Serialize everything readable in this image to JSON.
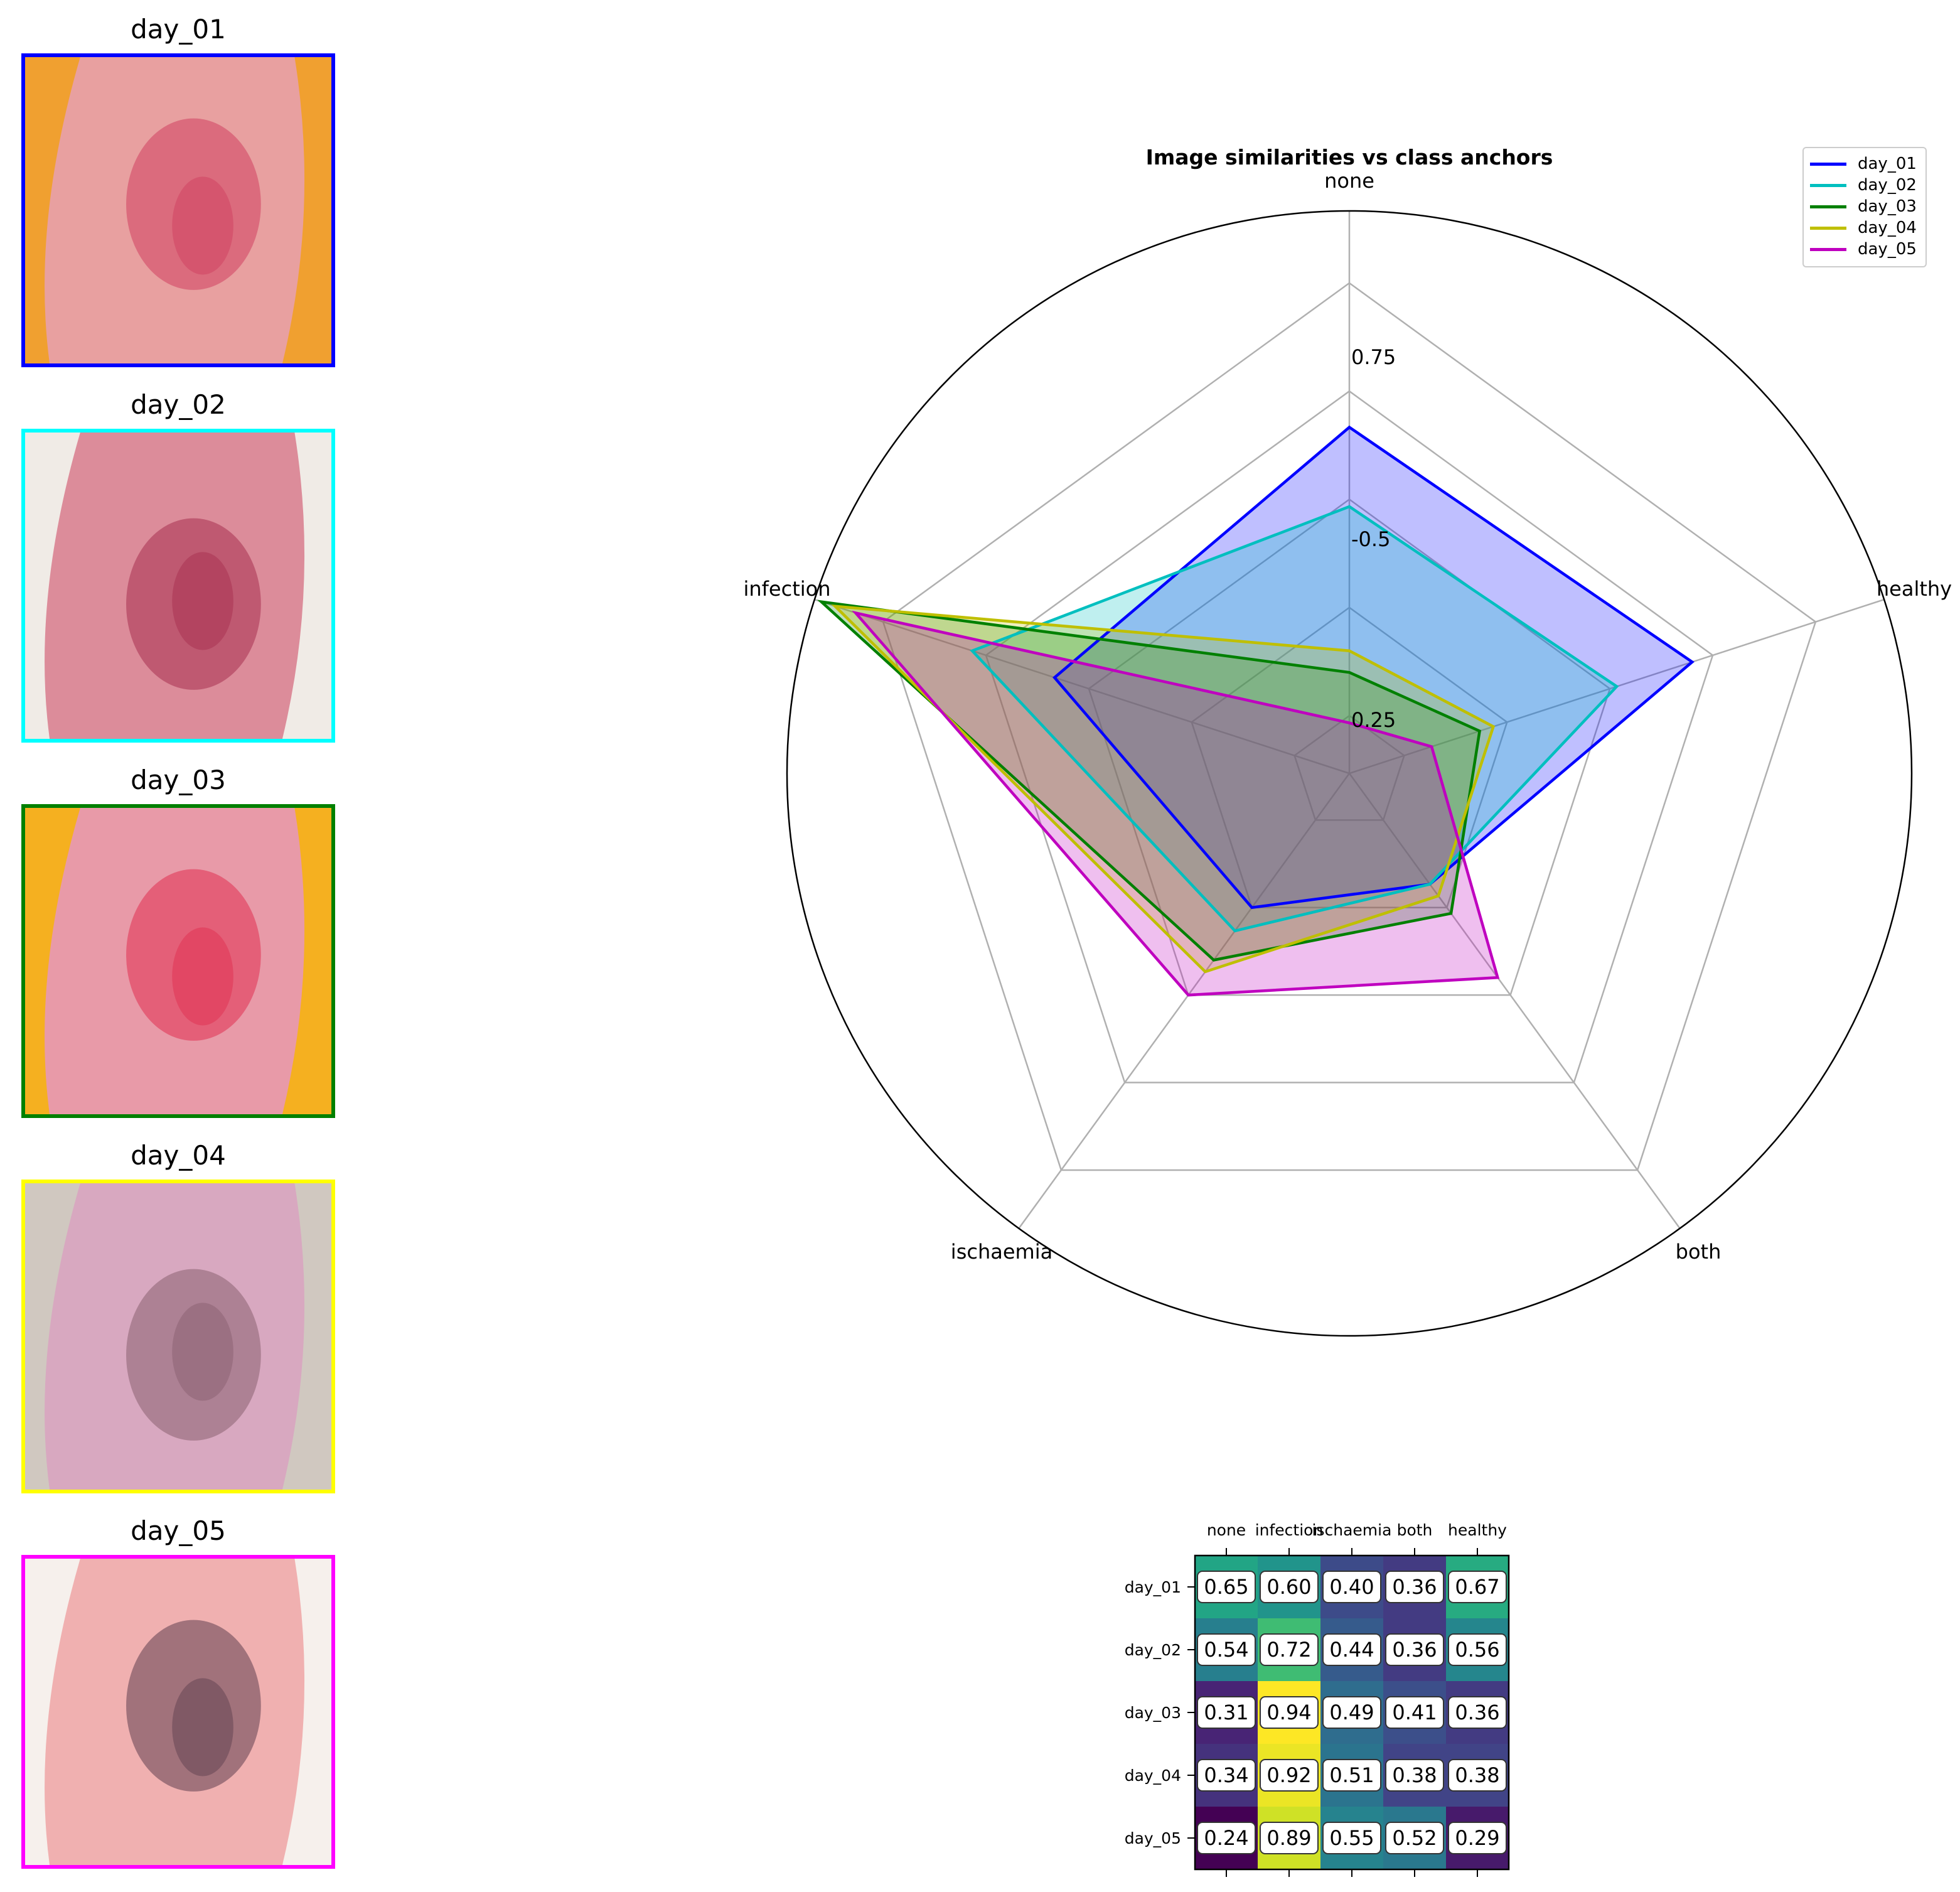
{
  "thumbnails": [
    {
      "title": "day_01",
      "color": "#0000ff",
      "base": "#e8a0a0",
      "accent": "#d04060",
      "bg": "#f0a030"
    },
    {
      "title": "day_02",
      "color": "#00ffff",
      "base": "#dc8c9a",
      "accent": "#a83050",
      "bg": "#f0ebe6"
    },
    {
      "title": "day_03",
      "color": "#008000",
      "base": "#e89aa8",
      "accent": "#e03050",
      "bg": "#f5b020"
    },
    {
      "title": "day_04",
      "color": "#ffff00",
      "base": "#d8a8c0",
      "accent": "#8a6070",
      "bg": "#d0c8c0"
    },
    {
      "title": "day_05",
      "color": "#ff00ff",
      "base": "#f0b0b0",
      "accent": "#604050",
      "bg": "#f6f0ec"
    }
  ],
  "chart_data": [
    {
      "type": "radar",
      "title": "Image similarities vs class anchors",
      "axes": [
        "none",
        "healthy",
        "both",
        "ischaemia",
        "infection"
      ],
      "radial_tick_labels": [
        "0.25",
        "-0.5",
        "0.75"
      ],
      "series": [
        {
          "name": "day_01",
          "color": "#0000ff",
          "values": [
            0.65,
            0.67,
            0.36,
            0.4,
            0.6
          ]
        },
        {
          "name": "day_02",
          "color": "#00bfbf",
          "values": [
            0.54,
            0.56,
            0.36,
            0.44,
            0.72
          ]
        },
        {
          "name": "day_03",
          "color": "#008000",
          "values": [
            0.31,
            0.36,
            0.41,
            0.49,
            0.94
          ]
        },
        {
          "name": "day_04",
          "color": "#bfbf00",
          "values": [
            0.34,
            0.38,
            0.38,
            0.51,
            0.92
          ]
        },
        {
          "name": "day_05",
          "color": "#bf00bf",
          "values": [
            0.24,
            0.29,
            0.52,
            0.55,
            0.89
          ]
        }
      ],
      "legend_position": "top-right"
    },
    {
      "type": "heatmap",
      "columns": [
        "none",
        "infection",
        "ischaemia",
        "both",
        "healthy"
      ],
      "rows": [
        "day_01",
        "day_02",
        "day_03",
        "day_04",
        "day_05"
      ],
      "values": [
        [
          0.65,
          0.6,
          0.4,
          0.36,
          0.67
        ],
        [
          0.54,
          0.72,
          0.44,
          0.36,
          0.56
        ],
        [
          0.31,
          0.94,
          0.49,
          0.41,
          0.36
        ],
        [
          0.34,
          0.92,
          0.51,
          0.38,
          0.38
        ],
        [
          0.24,
          0.89,
          0.55,
          0.52,
          0.29
        ]
      ],
      "labels": [
        [
          "0.65",
          "0.60",
          "0.40",
          "0.36",
          "0.67"
        ],
        [
          "0.54",
          "0.72",
          "0.44",
          "0.36",
          "0.56"
        ],
        [
          "0.31",
          "0.94",
          "0.49",
          "0.41",
          "0.36"
        ],
        [
          "0.34",
          "0.92",
          "0.51",
          "0.38",
          "0.38"
        ],
        [
          "0.24",
          "0.89",
          "0.55",
          "0.52",
          "0.29"
        ]
      ],
      "colormap": "viridis",
      "range": [
        0.24,
        0.94
      ]
    }
  ]
}
